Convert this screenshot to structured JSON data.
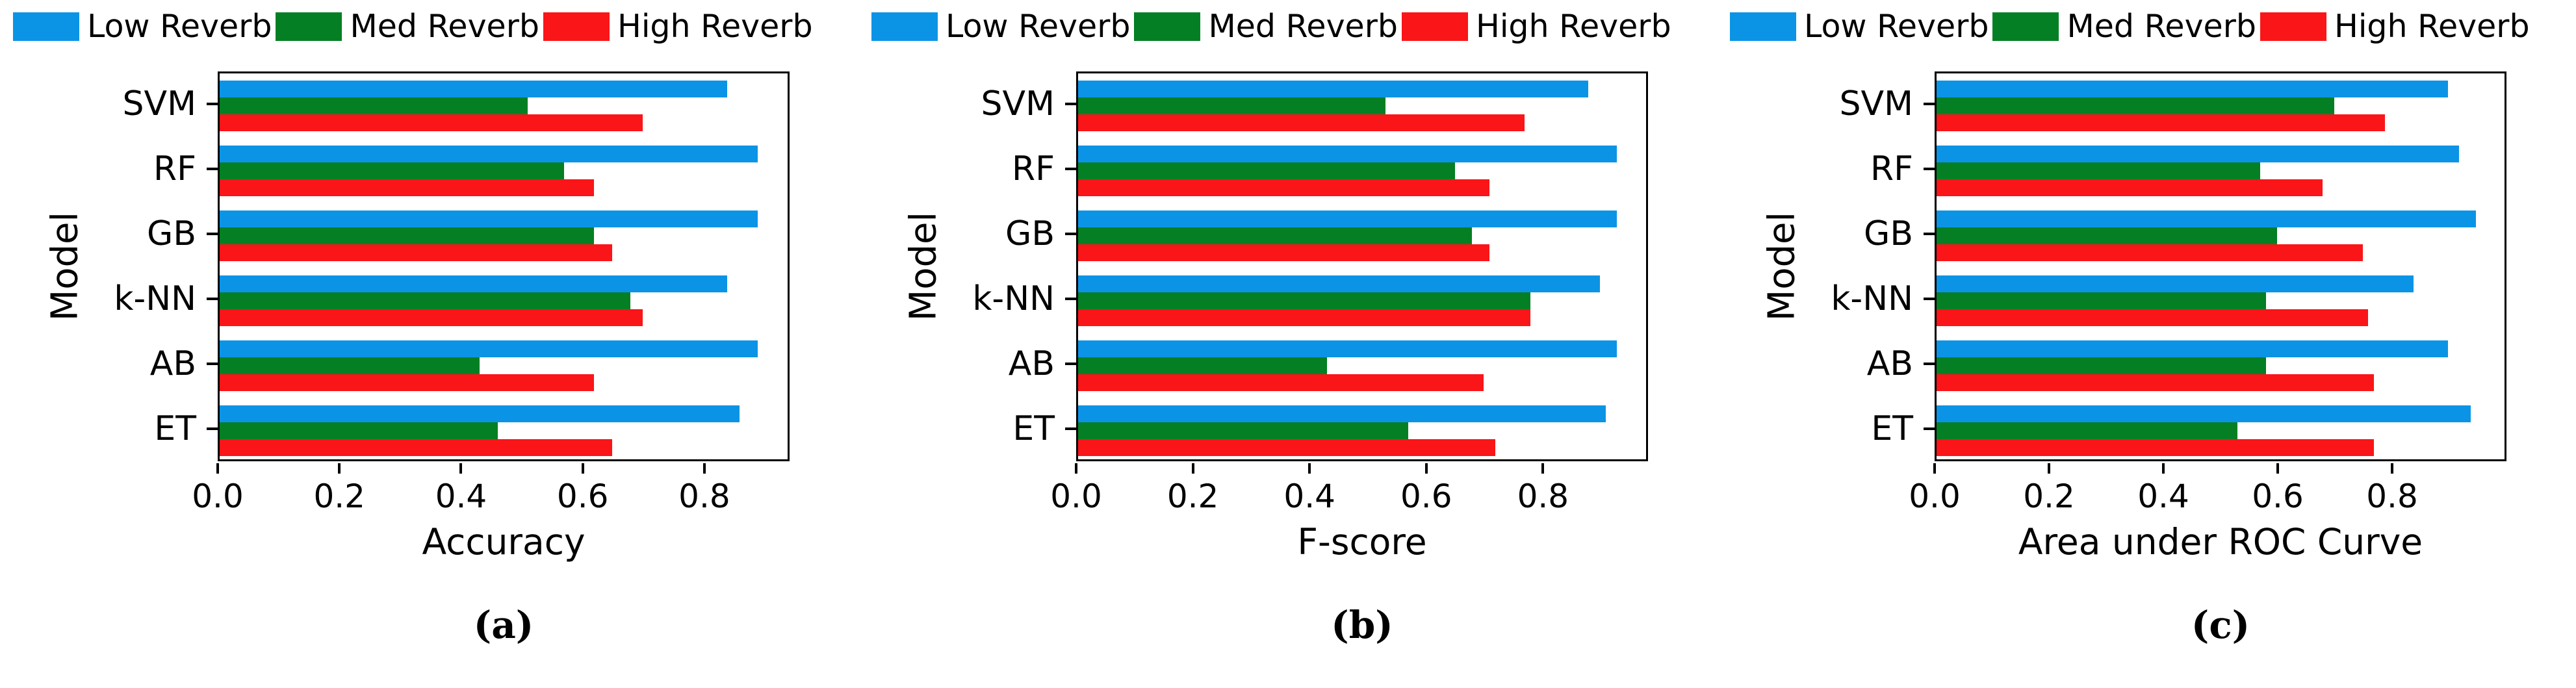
{
  "figure": {
    "background": "#ffffff",
    "axis_color": "#000000"
  },
  "legend": {
    "position": "top",
    "items": [
      {
        "label": "Low Reverb",
        "color": "#0b94e6"
      },
      {
        "label": "Med Reverb",
        "color": "#047f23"
      },
      {
        "label": "High Reverb",
        "color": "#fa1518"
      }
    ]
  },
  "chart_data": [
    {
      "type": "bar",
      "orientation": "horizontal",
      "caption": "(a)",
      "xlabel": "Accuracy",
      "ylabel": "Model",
      "categories": [
        "SVM",
        "RF",
        "GB",
        "k-NN",
        "AB",
        "ET"
      ],
      "series": [
        {
          "name": "Low Reverb",
          "color": "#0b94e6",
          "values": [
            0.84,
            0.89,
            0.89,
            0.84,
            0.89,
            0.86
          ]
        },
        {
          "name": "Med Reverb",
          "color": "#047f23",
          "values": [
            0.51,
            0.57,
            0.62,
            0.68,
            0.43,
            0.46
          ]
        },
        {
          "name": "High Reverb",
          "color": "#fa1518",
          "values": [
            0.7,
            0.62,
            0.65,
            0.7,
            0.62,
            0.65
          ]
        }
      ],
      "xticks": [
        0.0,
        0.2,
        0.4,
        0.6,
        0.8
      ],
      "xlim": [
        0,
        0.94
      ],
      "grid": false
    },
    {
      "type": "bar",
      "orientation": "horizontal",
      "caption": "(b)",
      "xlabel": "F-score",
      "ylabel": "Model",
      "categories": [
        "SVM",
        "RF",
        "GB",
        "k-NN",
        "AB",
        "ET"
      ],
      "series": [
        {
          "name": "Low Reverb",
          "color": "#0b94e6",
          "values": [
            0.88,
            0.93,
            0.93,
            0.9,
            0.93,
            0.91
          ]
        },
        {
          "name": "Med Reverb",
          "color": "#047f23",
          "values": [
            0.53,
            0.65,
            0.68,
            0.78,
            0.43,
            0.57
          ]
        },
        {
          "name": "High Reverb",
          "color": "#fa1518",
          "values": [
            0.77,
            0.71,
            0.71,
            0.78,
            0.7,
            0.72
          ]
        }
      ],
      "xticks": [
        0.0,
        0.2,
        0.4,
        0.6,
        0.8
      ],
      "xlim": [
        0,
        0.98
      ],
      "grid": false
    },
    {
      "type": "bar",
      "orientation": "horizontal",
      "caption": "(c)",
      "xlabel": "Area under ROC Curve",
      "ylabel": "Model",
      "categories": [
        "SVM",
        "RF",
        "GB",
        "k-NN",
        "AB",
        "ET"
      ],
      "series": [
        {
          "name": "Low Reverb",
          "color": "#0b94e6",
          "values": [
            0.9,
            0.92,
            0.95,
            0.84,
            0.9,
            0.94
          ]
        },
        {
          "name": "Med Reverb",
          "color": "#047f23",
          "values": [
            0.7,
            0.57,
            0.6,
            0.58,
            0.58,
            0.53
          ]
        },
        {
          "name": "High Reverb",
          "color": "#fa1518",
          "values": [
            0.79,
            0.68,
            0.75,
            0.76,
            0.77,
            0.77
          ]
        }
      ],
      "xticks": [
        0.0,
        0.2,
        0.4,
        0.6,
        0.8
      ],
      "xlim": [
        0,
        1.0
      ],
      "grid": false
    }
  ]
}
